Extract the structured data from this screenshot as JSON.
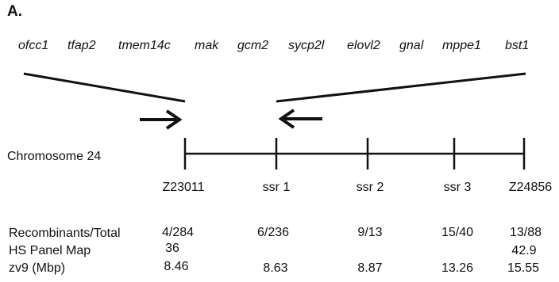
{
  "panel_label": "A.",
  "genes": [
    "ofcc1",
    "tfap2",
    "tmem14c",
    "mak",
    "gcm2",
    "sycp2l",
    "elovl2",
    "gnal",
    "mppe1",
    "bst1"
  ],
  "chromosome_label": "Chromosome 24",
  "markers": [
    "Z23011",
    "ssr 1",
    "ssr 2",
    "ssr 3",
    "Z24856"
  ],
  "table": {
    "rows": [
      {
        "label": "Recombinants/Total",
        "values": [
          "4/284",
          "6/236",
          "9/13",
          "15/40",
          "13/88"
        ]
      },
      {
        "label": "HS Panel Map",
        "values": [
          "36",
          "",
          "",
          "",
          "42.9"
        ]
      },
      {
        "label": "zv9 (Mbp)",
        "values": [
          "8.46",
          "8.63",
          "8.87",
          "13.26",
          "15.55"
        ]
      }
    ]
  },
  "colors": {
    "line": "#111111",
    "text": "#111111"
  }
}
